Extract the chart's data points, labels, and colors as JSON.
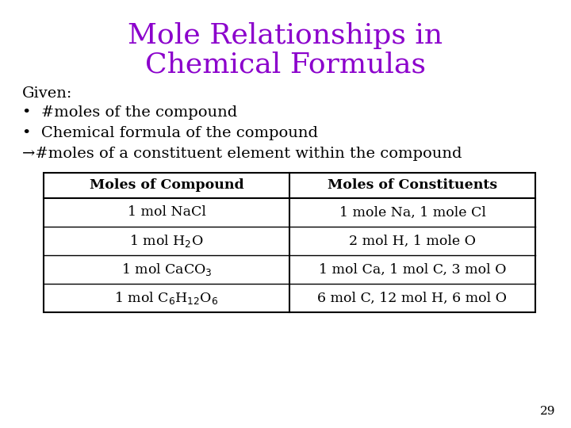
{
  "title_line1": "Mole Relationships in",
  "title_line2": "Chemical Formulas",
  "title_color": "#8B00CC",
  "title_fontsize": 26,
  "background_color": "#FFFFFF",
  "given_text": "Given:",
  "bullet1": "#moles of the compound",
  "bullet2": "Chemical formula of the compound",
  "arrow_line": "#moles of a constituent element within the compound",
  "body_fontsize": 14,
  "body_color": "#000000",
  "table_header": [
    "Moles of Compound",
    "Moles of Constituents"
  ],
  "page_number": "29",
  "table_fontsize": 12.5
}
